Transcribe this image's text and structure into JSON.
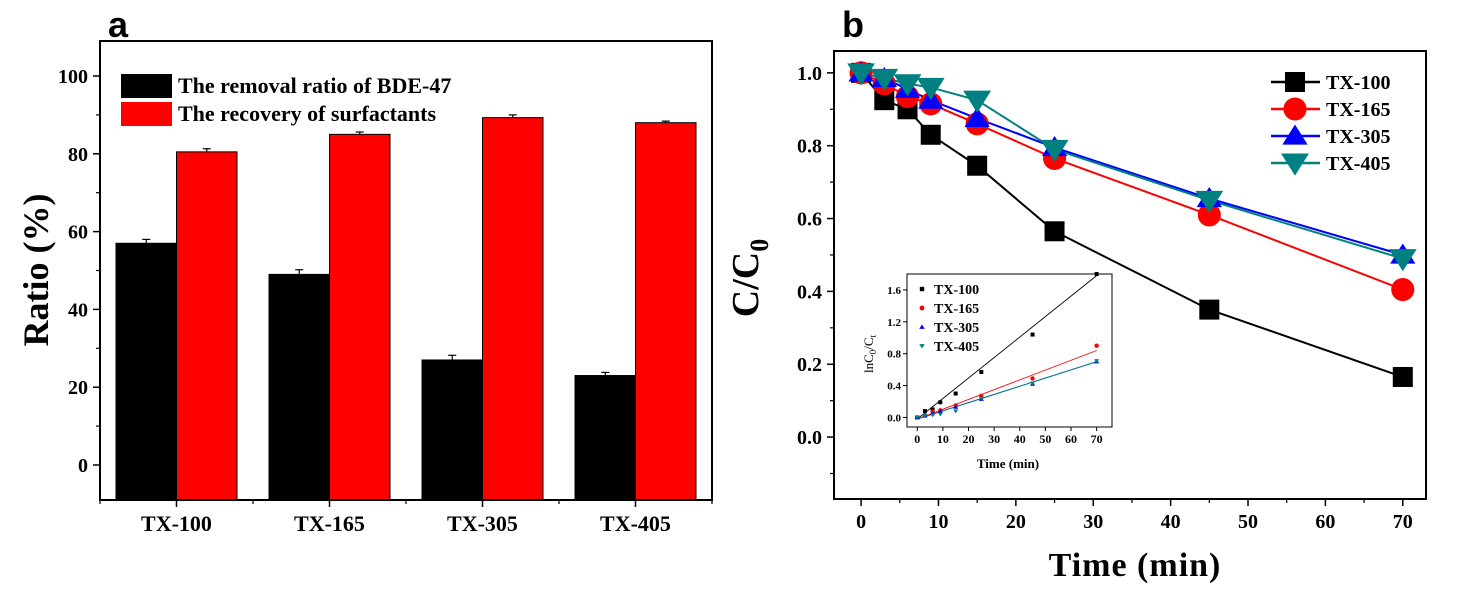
{
  "chart_data": [
    {
      "panel": "a",
      "type": "bar",
      "title": "",
      "xlabel": "",
      "ylabel": "Ratio (%)",
      "categories": [
        "TX-100",
        "TX-165",
        "TX-305",
        "TX-405"
      ],
      "series": [
        {
          "name": "The removal ratio of BDE-47",
          "color": "#000000",
          "values": [
            57.0,
            49.0,
            27.0,
            23.0
          ],
          "errors": [
            1.0,
            1.2,
            1.2,
            0.8
          ]
        },
        {
          "name": "The recovery of surfactants",
          "color": "#ff0000",
          "values": [
            80.5,
            85.0,
            89.3,
            88.0
          ],
          "errors": [
            0.8,
            0.6,
            0.7,
            0.4
          ]
        }
      ],
      "ylim": [
        -9,
        109
      ],
      "yticks": [
        0,
        20,
        40,
        60,
        80,
        100
      ],
      "legend": "top-left",
      "grid": false
    },
    {
      "panel": "b",
      "type": "line",
      "xlabel": "Time (min)",
      "ylabel": "C/C0",
      "ylabel_main": "C/C",
      "ylabel_sub": "0",
      "xlim": [
        -3.5,
        73
      ],
      "ylim": [
        -0.17,
        1.06
      ],
      "xticks": [
        0,
        10,
        20,
        30,
        40,
        50,
        60,
        70
      ],
      "yticks": [
        0.0,
        0.2,
        0.4,
        0.6,
        0.8,
        1.0
      ],
      "ytick_labels": [
        "0.0",
        "0.2",
        "0.4",
        "0.6",
        "0.8",
        "1.0"
      ],
      "legend": "top-right",
      "series": [
        {
          "name": "TX-100",
          "color": "#000000",
          "marker": "square",
          "x": [
            0,
            3,
            6,
            9,
            15,
            25,
            45,
            70
          ],
          "y": [
            1.0,
            0.925,
            0.9,
            0.83,
            0.745,
            0.565,
            0.35,
            0.165
          ]
        },
        {
          "name": "TX-165",
          "color": "#ff0000",
          "marker": "circle",
          "x": [
            0,
            3,
            6,
            9,
            15,
            25,
            45,
            70
          ],
          "y": [
            1.0,
            0.97,
            0.935,
            0.915,
            0.86,
            0.765,
            0.61,
            0.405
          ]
        },
        {
          "name": "TX-305",
          "color": "#0000ff",
          "marker": "triangle-up",
          "x": [
            0,
            3,
            6,
            9,
            15,
            25,
            45,
            70
          ],
          "y": [
            1.0,
            0.985,
            0.955,
            0.925,
            0.875,
            0.795,
            0.655,
            0.5
          ]
        },
        {
          "name": "TX-405",
          "color": "#008080",
          "marker": "triangle-down",
          "x": [
            0,
            3,
            6,
            9,
            15,
            25,
            45,
            70
          ],
          "y": [
            1.0,
            0.985,
            0.97,
            0.96,
            0.925,
            0.79,
            0.65,
            0.49
          ]
        }
      ],
      "inset": {
        "type": "scatter",
        "xlabel": "Time (min)",
        "ylabel": "lnC0/Ct",
        "ylabel_parts": [
          "lnC",
          "0",
          "/C",
          "t"
        ],
        "xlim": [
          -4,
          76
        ],
        "ylim": [
          -0.12,
          1.8
        ],
        "xticks": [
          0,
          10,
          20,
          30,
          40,
          50,
          60,
          70
        ],
        "yticks": [
          0.0,
          0.4,
          0.8,
          1.2,
          1.6
        ],
        "ytick_labels": [
          "0.0",
          "0.4",
          "0.8",
          "1.2",
          "1.6"
        ],
        "series": [
          {
            "name": "TX-100",
            "color": "#000000",
            "marker": "square",
            "x": [
              0,
              3,
              6,
              9,
              15,
              25,
              45,
              70
            ],
            "y": [
              0.0,
              0.08,
              0.1,
              0.19,
              0.3,
              0.57,
              1.04,
              1.8
            ],
            "fit": [
              -0.02,
              1.78
            ]
          },
          {
            "name": "TX-165",
            "color": "#ff0000",
            "marker": "circle",
            "x": [
              0,
              3,
              6,
              9,
              15,
              25,
              45,
              70
            ],
            "y": [
              0.0,
              0.03,
              0.07,
              0.09,
              0.15,
              0.27,
              0.49,
              0.9
            ],
            "fit": [
              -0.02,
              0.84
            ]
          },
          {
            "name": "TX-305",
            "color": "#0000ff",
            "marker": "triangle-up",
            "x": [
              0,
              3,
              6,
              9,
              15,
              25,
              45,
              70
            ],
            "y": [
              0.0,
              0.02,
              0.05,
              0.08,
              0.13,
              0.23,
              0.42,
              0.7
            ],
            "fit": [
              -0.02,
              0.7
            ]
          },
          {
            "name": "TX-405",
            "color": "#008080",
            "marker": "triangle-down",
            "x": [
              0,
              3,
              6,
              9,
              15,
              25,
              45,
              70
            ],
            "y": [
              0.0,
              0.02,
              0.03,
              0.04,
              0.08,
              0.24,
              0.43,
              0.71
            ],
            "fit": [
              -0.02,
              0.7
            ]
          }
        ]
      }
    }
  ]
}
